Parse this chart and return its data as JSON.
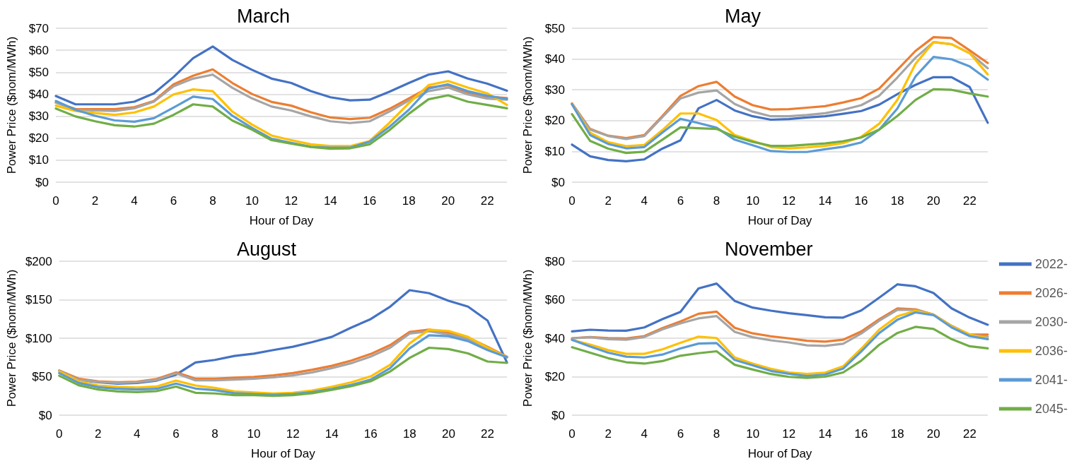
{
  "chart_data": [
    {
      "type": "line",
      "title": "March",
      "xlabel": "Hour of Day",
      "ylabel": "Power Price ($nom/MWh)",
      "categories": [
        "0",
        null,
        "2",
        null,
        "4",
        null,
        "6",
        null,
        "8",
        null,
        "10",
        null,
        "12",
        null,
        "14",
        null,
        "16",
        null,
        "18",
        null,
        "20",
        null,
        "22",
        null
      ],
      "ylim": [
        0,
        70
      ],
      "yticks": [
        {
          "value": 0,
          "label": "$0"
        },
        {
          "value": 10,
          "label": "$10"
        },
        {
          "value": 20,
          "label": "$20"
        },
        {
          "value": 30,
          "label": "$30"
        },
        {
          "value": 40,
          "label": "$40"
        },
        {
          "value": 50,
          "label": "$50"
        },
        {
          "value": 60,
          "label": "$60"
        },
        {
          "value": 70,
          "label": "$70"
        }
      ],
      "grid": "y",
      "legend": false,
      "marker": "none",
      "line_style": "solid",
      "series": [
        {
          "color": "#4472c4",
          "values": [
            39.2,
            35.4,
            35.4,
            35.4,
            36.6,
            40.4,
            47.8,
            56.4,
            61.7,
            55.6,
            51.1,
            47.1,
            45.1,
            41.4,
            38.6,
            37.2,
            37.5,
            41.1,
            45.1,
            48.9,
            50.4,
            47.1,
            44.8,
            41.6
          ]
        },
        {
          "color": "#ed7d31",
          "values": [
            36.2,
            33.3,
            33.2,
            33.2,
            34.1,
            36.9,
            44.5,
            48.4,
            51.3,
            45.1,
            40.1,
            36.5,
            34.8,
            31.8,
            29.4,
            28.7,
            29.3,
            33.3,
            38.1,
            43,
            44.1,
            40.7,
            38.9,
            38.3
          ]
        },
        {
          "color": "#a5a5a5",
          "values": [
            36.2,
            32.9,
            32.6,
            32.4,
            33.6,
            36.6,
            43.6,
            47.1,
            48.9,
            42.9,
            38.1,
            34.4,
            32.6,
            29.9,
            27.7,
            26.9,
            27.7,
            32.1,
            37.1,
            41.4,
            43,
            39.9,
            38,
            37.5
          ]
        },
        {
          "color": "#ffc000",
          "values": [
            34.8,
            32.4,
            31.4,
            30.6,
            31.7,
            34.4,
            39.9,
            42.2,
            41.4,
            32.1,
            26.2,
            21.2,
            19.1,
            17.2,
            16.4,
            16.4,
            18.7,
            26.9,
            35.9,
            44.1,
            46,
            43,
            40.4,
            35.1
          ]
        },
        {
          "color": "#5b9bd5",
          "values": [
            36.9,
            32.9,
            30.2,
            28.1,
            27.5,
            29.1,
            33.9,
            38.9,
            37.8,
            30.2,
            24.7,
            19.7,
            17.9,
            16.1,
            15.7,
            15.7,
            18.4,
            25.1,
            32.9,
            42.6,
            44.5,
            41.4,
            39.3,
            37.8
          ]
        },
        {
          "color": "#70ad47",
          "values": [
            33.5,
            29.9,
            27.7,
            25.9,
            25.3,
            26.6,
            30.6,
            35.4,
            34.4,
            28,
            23.9,
            19.1,
            17.5,
            16,
            15.2,
            15.4,
            17.2,
            23.6,
            31.1,
            37.7,
            39.5,
            36.6,
            35.1,
            33.6
          ]
        }
      ]
    },
    {
      "type": "line",
      "title": "May",
      "xlabel": "Hour of Day",
      "ylabel": "Power Price ($nom/MWh)",
      "categories": [
        "0",
        null,
        "2",
        null,
        "4",
        null,
        "6",
        null,
        "8",
        null,
        "10",
        null,
        "12",
        null,
        "14",
        null,
        "16",
        null,
        "18",
        null,
        "20",
        null,
        "22",
        null
      ],
      "ylim": [
        0,
        50
      ],
      "yticks": [
        {
          "value": 0,
          "label": "$0"
        },
        {
          "value": 10,
          "label": "$10"
        },
        {
          "value": 20,
          "label": "$20"
        },
        {
          "value": 30,
          "label": "$30"
        },
        {
          "value": 40,
          "label": "$40"
        },
        {
          "value": 50,
          "label": "$50"
        }
      ],
      "grid": "y",
      "legend": false,
      "marker": "none",
      "line_style": "solid",
      "series": [
        {
          "color": "#4472c4",
          "values": [
            12.2,
            8.4,
            7.2,
            6.8,
            7.4,
            10.9,
            13.6,
            24,
            26.7,
            23.3,
            21.4,
            20.3,
            20.5,
            21,
            21.4,
            22.2,
            23.1,
            25.2,
            28.6,
            31.6,
            34.1,
            34.1,
            30.9,
            19.3
          ]
        },
        {
          "color": "#ed7d31",
          "values": [
            25.6,
            17.3,
            15.1,
            14.3,
            15.3,
            21.5,
            28,
            31.2,
            32.6,
            27.8,
            25,
            23.6,
            23.7,
            24.2,
            24.7,
            25.9,
            27.3,
            30.4,
            36.5,
            42.6,
            47.1,
            46.8,
            42.8,
            38.7
          ]
        },
        {
          "color": "#a5a5a5",
          "values": [
            25.4,
            17.1,
            15,
            14,
            15,
            21.1,
            27.2,
            29.1,
            29.8,
            25.4,
            22.9,
            21.4,
            21.4,
            21.8,
            22.4,
            23.5,
            25,
            28.1,
            34,
            40.4,
            45.5,
            44.8,
            41.9,
            37
          ]
        },
        {
          "color": "#ffc000",
          "values": [
            25.3,
            16.1,
            13,
            11.7,
            12.1,
            16.9,
            22.3,
            22.3,
            20.2,
            15.3,
            13.4,
            11.4,
            11,
            11.3,
            11.8,
            12.7,
            14.7,
            19,
            26.7,
            38.4,
            45.5,
            44.8,
            41.9,
            35
          ]
        },
        {
          "color": "#5b9bd5",
          "values": [
            25.3,
            15.3,
            12.4,
            11,
            11.4,
            16.1,
            20.6,
            19.2,
            17.7,
            13.8,
            12,
            10.1,
            9.8,
            9.8,
            10.7,
            11.5,
            12.9,
            17.1,
            23.9,
            34.3,
            40.7,
            39.9,
            37.6,
            33.3
          ]
        },
        {
          "color": "#70ad47",
          "values": [
            22.1,
            13.4,
            10.9,
            9.5,
            9.9,
            13.8,
            17.8,
            17.5,
            17.3,
            14.8,
            13.1,
            11.8,
            11.8,
            12.2,
            12.6,
            13.3,
            14.5,
            17.1,
            21.5,
            26.7,
            30.2,
            30,
            28.8,
            27.8
          ]
        }
      ]
    },
    {
      "type": "line",
      "title": "August",
      "xlabel": "Hour of Day",
      "ylabel": "Power Price ($nom/MWh)",
      "categories": [
        "0",
        null,
        "2",
        null,
        "4",
        null,
        "6",
        null,
        "8",
        null,
        "10",
        null,
        "12",
        null,
        "14",
        null,
        "16",
        null,
        "18",
        null,
        "20",
        null,
        "22",
        null
      ],
      "ylim": [
        0,
        200
      ],
      "yticks": [
        {
          "value": 0,
          "label": "$0"
        },
        {
          "value": 50,
          "label": "$50"
        },
        {
          "value": 100,
          "label": "$100"
        },
        {
          "value": 150,
          "label": "$150"
        },
        {
          "value": 200,
          "label": "$200"
        }
      ],
      "grid": "y",
      "legend": false,
      "marker": "none",
      "line_style": "solid",
      "series": [
        {
          "color": "#4472c4",
          "values": [
            57.7,
            46,
            42.7,
            41,
            41.9,
            44.9,
            52.6,
            68.4,
            71.8,
            76.9,
            79.9,
            84.6,
            88.9,
            94.9,
            101.7,
            113.7,
            124.8,
            141,
            162.4,
            158.5,
            148.7,
            141,
            123,
            68.4
          ]
        },
        {
          "color": "#ed7d31",
          "values": [
            58,
            47.4,
            44,
            42.7,
            43.6,
            47,
            55.6,
            47.4,
            47.4,
            48.7,
            49.6,
            51.7,
            54.7,
            59,
            64.1,
            70.9,
            79.5,
            91,
            108.1,
            111.1,
            106.8,
            100.9,
            88.9,
            76
          ]
        },
        {
          "color": "#a5a5a5",
          "values": [
            57.7,
            46,
            43.2,
            41.9,
            42.7,
            45.7,
            54.3,
            45.3,
            45.3,
            46.2,
            47.4,
            49.1,
            51.7,
            55.6,
            61.1,
            67.5,
            76.1,
            87.6,
            106,
            109,
            105,
            99,
            87.6,
            75.2
          ]
        },
        {
          "color": "#ffc000",
          "values": [
            56.8,
            44,
            38.5,
            36.8,
            35.9,
            37.2,
            44.9,
            38.5,
            35.5,
            30.8,
            29.5,
            28.2,
            29.1,
            32.1,
            36.8,
            42.7,
            50.4,
            65.4,
            93.2,
            111.1,
            109.4,
            101.7,
            87.6,
            75.2
          ]
        },
        {
          "color": "#5b9bd5",
          "values": [
            54.7,
            41.9,
            36.3,
            34.2,
            33.3,
            34.2,
            41,
            34.6,
            32.5,
            28.6,
            27.4,
            26.5,
            27.4,
            29.9,
            34.2,
            39.3,
            46.2,
            61.1,
            86.8,
            103.8,
            102.6,
            96.2,
            84.6,
            75.2
          ]
        },
        {
          "color": "#70ad47",
          "values": [
            51.3,
            38.9,
            33.3,
            30.8,
            29.9,
            31.2,
            37.2,
            29.1,
            28.2,
            26.1,
            26.1,
            25.2,
            26.1,
            28.6,
            32.9,
            37.6,
            44,
            56.8,
            74.4,
            87.6,
            85.9,
            80.3,
            69.7,
            67.9
          ]
        }
      ]
    },
    {
      "type": "line",
      "title": "November",
      "xlabel": "Hour of Day",
      "ylabel": "Power Price ($nom/MWh)",
      "categories": [
        "0",
        null,
        "2",
        null,
        "4",
        null,
        "6",
        null,
        "8",
        null,
        "10",
        null,
        "12",
        null,
        "14",
        null,
        "16",
        null,
        "18",
        null,
        "20",
        null,
        "22",
        null
      ],
      "ylim": [
        0,
        80
      ],
      "yticks": [
        {
          "value": 0,
          "label": "$0"
        },
        {
          "value": 20,
          "label": "$20"
        },
        {
          "value": 40,
          "label": "$40"
        },
        {
          "value": 60,
          "label": "$60"
        },
        {
          "value": 80,
          "label": "$80"
        }
      ],
      "grid": "y",
      "legend": "right",
      "marker": "none",
      "line_style": "solid",
      "series": [
        {
          "name": "2022-",
          "color": "#4472c4",
          "values": [
            43.5,
            44.4,
            44,
            43.9,
            45.6,
            49.9,
            53.7,
            65.9,
            68.4,
            59.4,
            55.9,
            54.3,
            53,
            52,
            50.9,
            50.7,
            54.4,
            61.1,
            68,
            67,
            63.5,
            55.5,
            50.7,
            47
          ]
        },
        {
          "name": "2026-",
          "color": "#ed7d31",
          "values": [
            40,
            40.6,
            40.1,
            39.9,
            41.1,
            45.2,
            48.7,
            52.7,
            53.8,
            45.4,
            42.5,
            41,
            39.9,
            38.7,
            38.2,
            39.2,
            43.5,
            49.9,
            55.5,
            55,
            52.3,
            46.4,
            41.9,
            41.9
          ]
        },
        {
          "name": "2030-",
          "color": "#a5a5a5",
          "values": [
            39.9,
            40.5,
            39.5,
            39.2,
            40.6,
            44.6,
            47.7,
            50.3,
            51.5,
            43.3,
            40.5,
            38.9,
            37.8,
            36.3,
            36,
            37.1,
            42.4,
            49.1,
            54.7,
            54.7,
            52.3,
            46.4,
            41.6,
            40.8
          ]
        },
        {
          "name": "2036-",
          "color": "#ffc000",
          "values": [
            39.1,
            36.7,
            33.8,
            31.9,
            31.9,
            34.2,
            37.6,
            40.8,
            40.1,
            30,
            26.8,
            24.1,
            22.2,
            21.4,
            22.1,
            25.4,
            34.5,
            44.5,
            51.4,
            54.2,
            52.3,
            46.2,
            41.9,
            40
          ]
        },
        {
          "name": "2041-",
          "color": "#5b9bd5",
          "values": [
            39.2,
            35.7,
            32.5,
            30.4,
            30,
            31.5,
            34.7,
            37.2,
            37.5,
            28.7,
            25.9,
            23,
            21.5,
            20.3,
            21.1,
            24.2,
            33.1,
            42.7,
            49.6,
            53.4,
            52,
            45.6,
            41.1,
            39.5
          ]
        },
        {
          "name": "2045-",
          "color": "#70ad47",
          "values": [
            35.3,
            32.5,
            29.6,
            27.5,
            26.8,
            28.1,
            30.9,
            32.2,
            33.2,
            26.2,
            23.7,
            21.4,
            19.9,
            19.4,
            20,
            22.2,
            28.3,
            36.6,
            42.7,
            45.9,
            44.8,
            39.5,
            35.8,
            34.7
          ]
        }
      ]
    }
  ]
}
